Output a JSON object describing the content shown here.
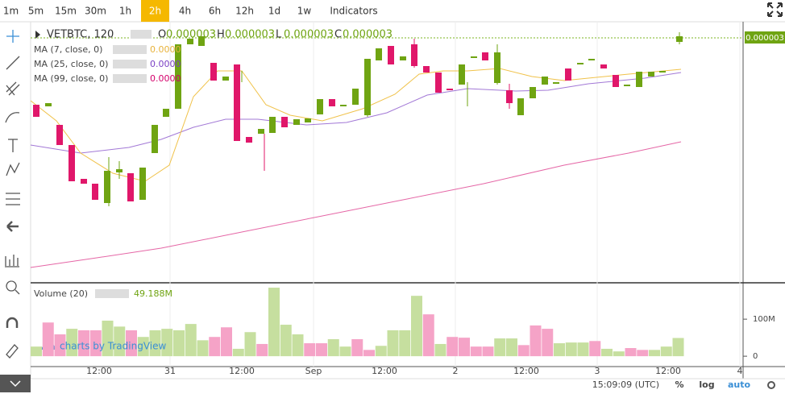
{
  "toolbar": {
    "intervals": [
      "1m",
      "5m",
      "15m",
      "30m",
      "1h",
      "2h",
      "4h",
      "6h",
      "12h",
      "1d",
      "1w"
    ],
    "active": "2h",
    "indicators": "Indicators"
  },
  "symbol": "VETBTC, 120",
  "ohlc": [
    {
      "key": "O",
      "value": "0.000003"
    },
    {
      "key": "H",
      "value": "0.000003"
    },
    {
      "key": "L",
      "value": "0.000003"
    },
    {
      "key": "C",
      "value": "0.000003"
    }
  ],
  "moving_averages": [
    {
      "name": "MA (7, close, 0)",
      "value": "0.0000",
      "color": "#e8b33c"
    },
    {
      "name": "MA (25, close, 0)",
      "value": "0.0000",
      "color": "#7a3fc4"
    },
    {
      "name": "MA (99, close, 0)",
      "value": "0.0000",
      "color": "#d4006b"
    }
  ],
  "price_label": "0.000003",
  "volume_legend": {
    "name": "Volume (20)",
    "value": "49.188M"
  },
  "watermark": "charts by TradingView",
  "x_axis_labels": [
    "12:00",
    "31",
    "12:00",
    "Sep",
    "12:00",
    "2",
    "12:00",
    "3",
    "12:00",
    "4"
  ],
  "status_bar": {
    "time": "15:09:09 (UTC)",
    "percent": "%",
    "log": "log",
    "auto": "auto"
  },
  "chart_data": {
    "type": "bar",
    "values": [
      26,
      91,
      59,
      74,
      70,
      70,
      96,
      80,
      70,
      52,
      70,
      74,
      70,
      87,
      43,
      52,
      78,
      20,
      65,
      33,
      185,
      85,
      59,
      35,
      35,
      46,
      26,
      46,
      17,
      28,
      70,
      70,
      163,
      113,
      33,
      52,
      50,
      26,
      26,
      48,
      48,
      30,
      83,
      74,
      35,
      37,
      37,
      41,
      20,
      13,
      22,
      17,
      17,
      26,
      49.188
    ],
    "colors": [
      "#c6df9f",
      "#f5a3c7",
      "#f5a3c7",
      "#c6df9f",
      "#f5a3c7",
      "#f5a3c7",
      "#c6df9f",
      "#c6df9f",
      "#f5a3c7",
      "#c6df9f",
      "#c6df9f",
      "#c6df9f",
      "#c6df9f",
      "#c6df9f",
      "#c6df9f",
      "#f5a3c7",
      "#f5a3c7",
      "#c6df9f",
      "#c6df9f",
      "#f5a3c7",
      "#c6df9f",
      "#c6df9f",
      "#c6df9f",
      "#f5a3c7",
      "#f5a3c7",
      "#c6df9f",
      "#c6df9f",
      "#f5a3c7",
      "#f5a3c7",
      "#c6df9f",
      "#c6df9f",
      "#c6df9f",
      "#c6df9f",
      "#f5a3c7",
      "#c6df9f",
      "#f5a3c7",
      "#f5a3c7",
      "#f5a3c7",
      "#f5a3c7",
      "#c6df9f",
      "#c6df9f",
      "#f5a3c7",
      "#f5a3c7",
      "#f5a3c7",
      "#c6df9f",
      "#c6df9f",
      "#c6df9f",
      "#f5a3c7",
      "#c6df9f",
      "#c6df9f",
      "#f5a3c7",
      "#f5a3c7",
      "#c6df9f",
      "#c6df9f",
      "#c6df9f"
    ],
    "ylim": [
      -28,
      196
    ],
    "yticks": [
      {
        "value": 100,
        "label": "100M"
      },
      0
    ]
  }
}
